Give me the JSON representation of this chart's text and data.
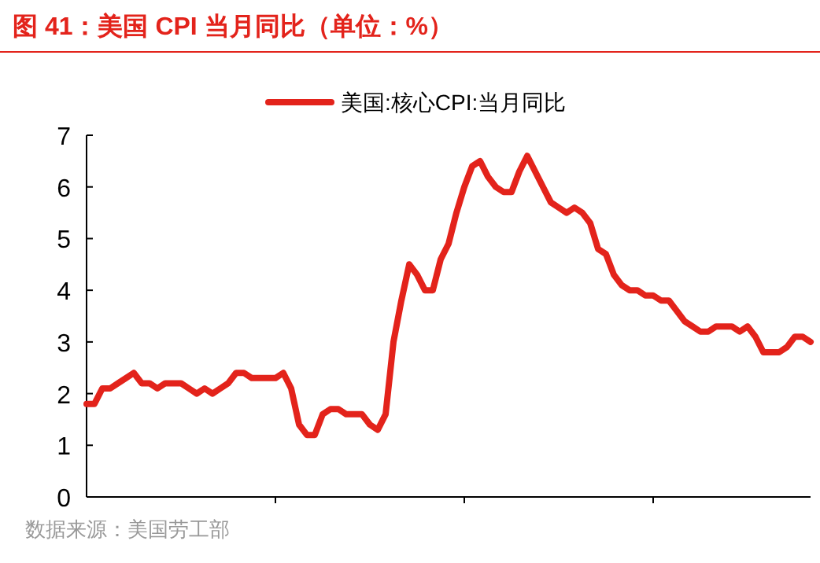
{
  "chart_data": {
    "type": "line",
    "title": "图 41：美国 CPI 当月同比（单位：%）",
    "annotations": [
      "数据来源：美国劳工部"
    ],
    "categories": [
      null,
      null,
      null,
      null,
      null,
      null,
      null,
      null,
      null,
      null,
      null,
      null,
      null,
      null,
      null,
      null,
      null,
      null,
      null,
      null,
      null,
      null,
      null,
      null,
      null,
      null,
      null,
      null,
      null,
      null,
      null,
      null,
      null,
      null,
      null,
      null,
      null,
      null,
      null,
      null,
      null,
      null,
      null,
      null,
      null,
      null,
      null,
      null,
      null,
      null,
      null,
      null,
      null,
      null,
      null,
      null,
      null,
      null,
      null,
      null,
      null,
      null,
      null,
      null,
      null,
      null,
      null,
      null,
      null,
      null,
      null,
      null,
      null,
      null,
      null,
      null,
      null,
      null,
      null,
      null,
      null,
      null,
      null,
      null,
      null,
      null,
      null,
      null,
      null,
      null,
      null,
      null,
      null
    ],
    "series": [
      {
        "name": "美国:核心CPI:当月同比",
        "color": "#e3231b",
        "values": [
          1.8,
          1.8,
          2.1,
          2.1,
          2.2,
          2.3,
          2.4,
          2.2,
          2.2,
          2.1,
          2.2,
          2.2,
          2.2,
          2.1,
          2.0,
          2.1,
          2.0,
          2.1,
          2.2,
          2.4,
          2.4,
          2.3,
          2.3,
          2.3,
          2.3,
          2.4,
          2.1,
          1.4,
          1.2,
          1.2,
          1.6,
          1.7,
          1.7,
          1.6,
          1.6,
          1.6,
          1.4,
          1.3,
          1.6,
          3.0,
          3.8,
          4.5,
          4.3,
          4.0,
          4.0,
          4.6,
          4.9,
          5.5,
          6.0,
          6.4,
          6.5,
          6.2,
          6.0,
          5.9,
          5.9,
          6.3,
          6.6,
          6.3,
          6.0,
          5.7,
          5.6,
          5.5,
          5.6,
          5.5,
          5.3,
          4.8,
          4.7,
          4.3,
          4.1,
          4.0,
          4.0,
          3.9,
          3.9,
          3.8,
          3.8,
          3.6,
          3.4,
          3.3,
          3.2,
          3.2,
          3.3,
          3.3,
          3.3,
          3.2,
          3.3,
          3.1,
          2.8,
          2.8,
          2.8,
          2.9,
          3.1,
          3.1,
          3.0
        ]
      }
    ],
    "ylim": [
      0,
      7
    ],
    "yticks": [
      0,
      1,
      2,
      3,
      4,
      5,
      6,
      7
    ],
    "legend": "top",
    "grid": false,
    "marker": "none",
    "line_style": "solid"
  }
}
